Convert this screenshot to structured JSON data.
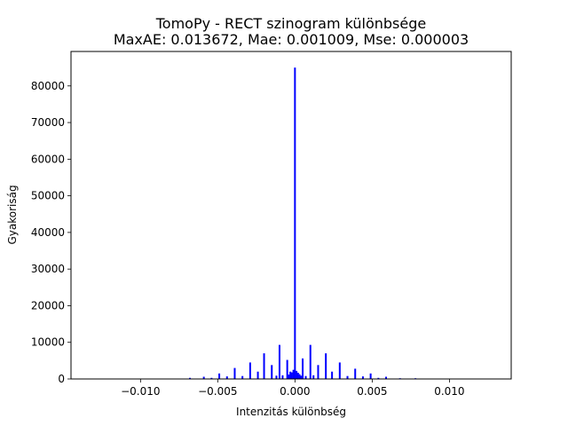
{
  "chart_data": {
    "type": "bar",
    "title": "TomoPy - RECT szinogram különbsége",
    "subtitle": "MaxAE: 0.013672, Mae: 0.001009, Mse: 0.000003",
    "xlabel": "Intenzitás különbség",
    "ylabel": "Gyakoriság",
    "xlim": [
      -0.0145,
      0.014
    ],
    "ylim": [
      0,
      89400
    ],
    "xticks": [
      -0.01,
      -0.005,
      0.0,
      0.005,
      0.01
    ],
    "xtick_labels": [
      "−0.010",
      "−0.005",
      "0.000",
      "0.005",
      "0.010"
    ],
    "yticks": [
      0,
      10000,
      20000,
      30000,
      40000,
      50000,
      60000,
      70000,
      80000
    ],
    "ytick_labels": [
      "0",
      "10000",
      "20000",
      "30000",
      "40000",
      "50000",
      "60000",
      "70000",
      "80000"
    ],
    "bar_color": "#0000ff",
    "grid": false,
    "x": [
      -0.0068,
      -0.0059,
      -0.0054,
      -0.0049,
      -0.0044,
      -0.0039,
      -0.0034,
      -0.0029,
      -0.0024,
      -0.002,
      -0.0015,
      -0.0012,
      -0.001,
      -0.0008,
      -0.0005,
      -0.0004,
      -0.0003,
      -0.0002,
      -0.0001,
      0.0,
      0.0001,
      0.0002,
      0.0003,
      0.0004,
      0.0005,
      0.0007,
      0.001,
      0.0012,
      0.0015,
      0.002,
      0.0024,
      0.0029,
      0.0034,
      0.0039,
      0.0044,
      0.0049,
      0.0054,
      0.0059,
      0.0068,
      0.0078
    ],
    "values": [
      300,
      600,
      300,
      1500,
      700,
      3000,
      800,
      4500,
      2000,
      7000,
      3800,
      900,
      9300,
      1000,
      5200,
      1200,
      2000,
      1800,
      2500,
      85000,
      2200,
      1700,
      1300,
      900,
      5600,
      800,
      9300,
      1000,
      3800,
      7000,
      2000,
      4500,
      800,
      2800,
      700,
      1500,
      300,
      600,
      200,
      200
    ]
  }
}
